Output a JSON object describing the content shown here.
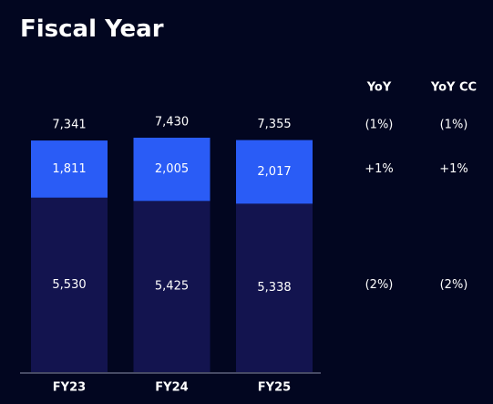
{
  "chart_data": {
    "type": "stacked-bar",
    "title": "Fiscal Year",
    "categories": [
      "FY23",
      "FY24",
      "FY25"
    ],
    "series": [
      {
        "color": "#13144f",
        "values": [
          5530,
          5425,
          5338
        ],
        "value_labels": [
          "5,530",
          "5,425",
          "5,338"
        ]
      },
      {
        "color": "#2a5cf6",
        "values": [
          1811,
          2005,
          2017
        ],
        "value_labels": [
          "1,811",
          "2,005",
          "2,017"
        ]
      }
    ],
    "totals": {
      "values": [
        7341,
        7430,
        7355
      ],
      "value_labels": [
        "7,341",
        "7,430",
        "7,355"
      ]
    },
    "ylim": [
      0,
      7430
    ],
    "yoy_table": {
      "headers": [
        "YoY",
        "YoY CC"
      ],
      "rows": [
        [
          "(1%)",
          "(1%)"
        ],
        [
          "+1%",
          "+1%"
        ],
        [
          "(2%)",
          "(2%)"
        ]
      ]
    }
  }
}
